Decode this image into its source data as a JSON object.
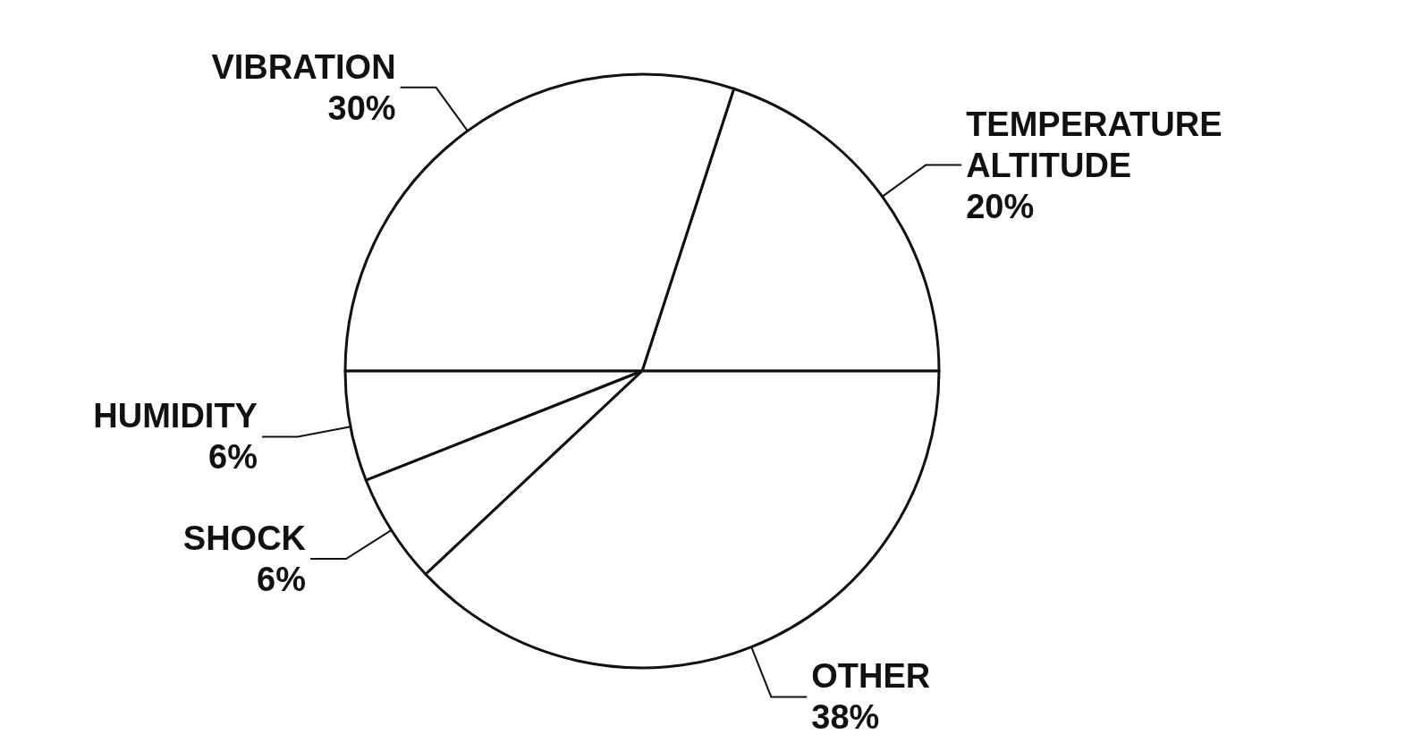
{
  "chart_data": {
    "type": "pie",
    "categories": [
      "TEMPERATURE ALTITUDE",
      "VIBRATION",
      "HUMIDITY",
      "SHOCK",
      "OTHER"
    ],
    "values": [
      20,
      30,
      6,
      6,
      38
    ],
    "value_labels": [
      "20%",
      "30%",
      "6%",
      "6%",
      "38%"
    ],
    "colors": [
      "#ffffff",
      "#ffffff",
      "#ffffff",
      "#ffffff",
      "#ffffff"
    ],
    "legend": false
  }
}
